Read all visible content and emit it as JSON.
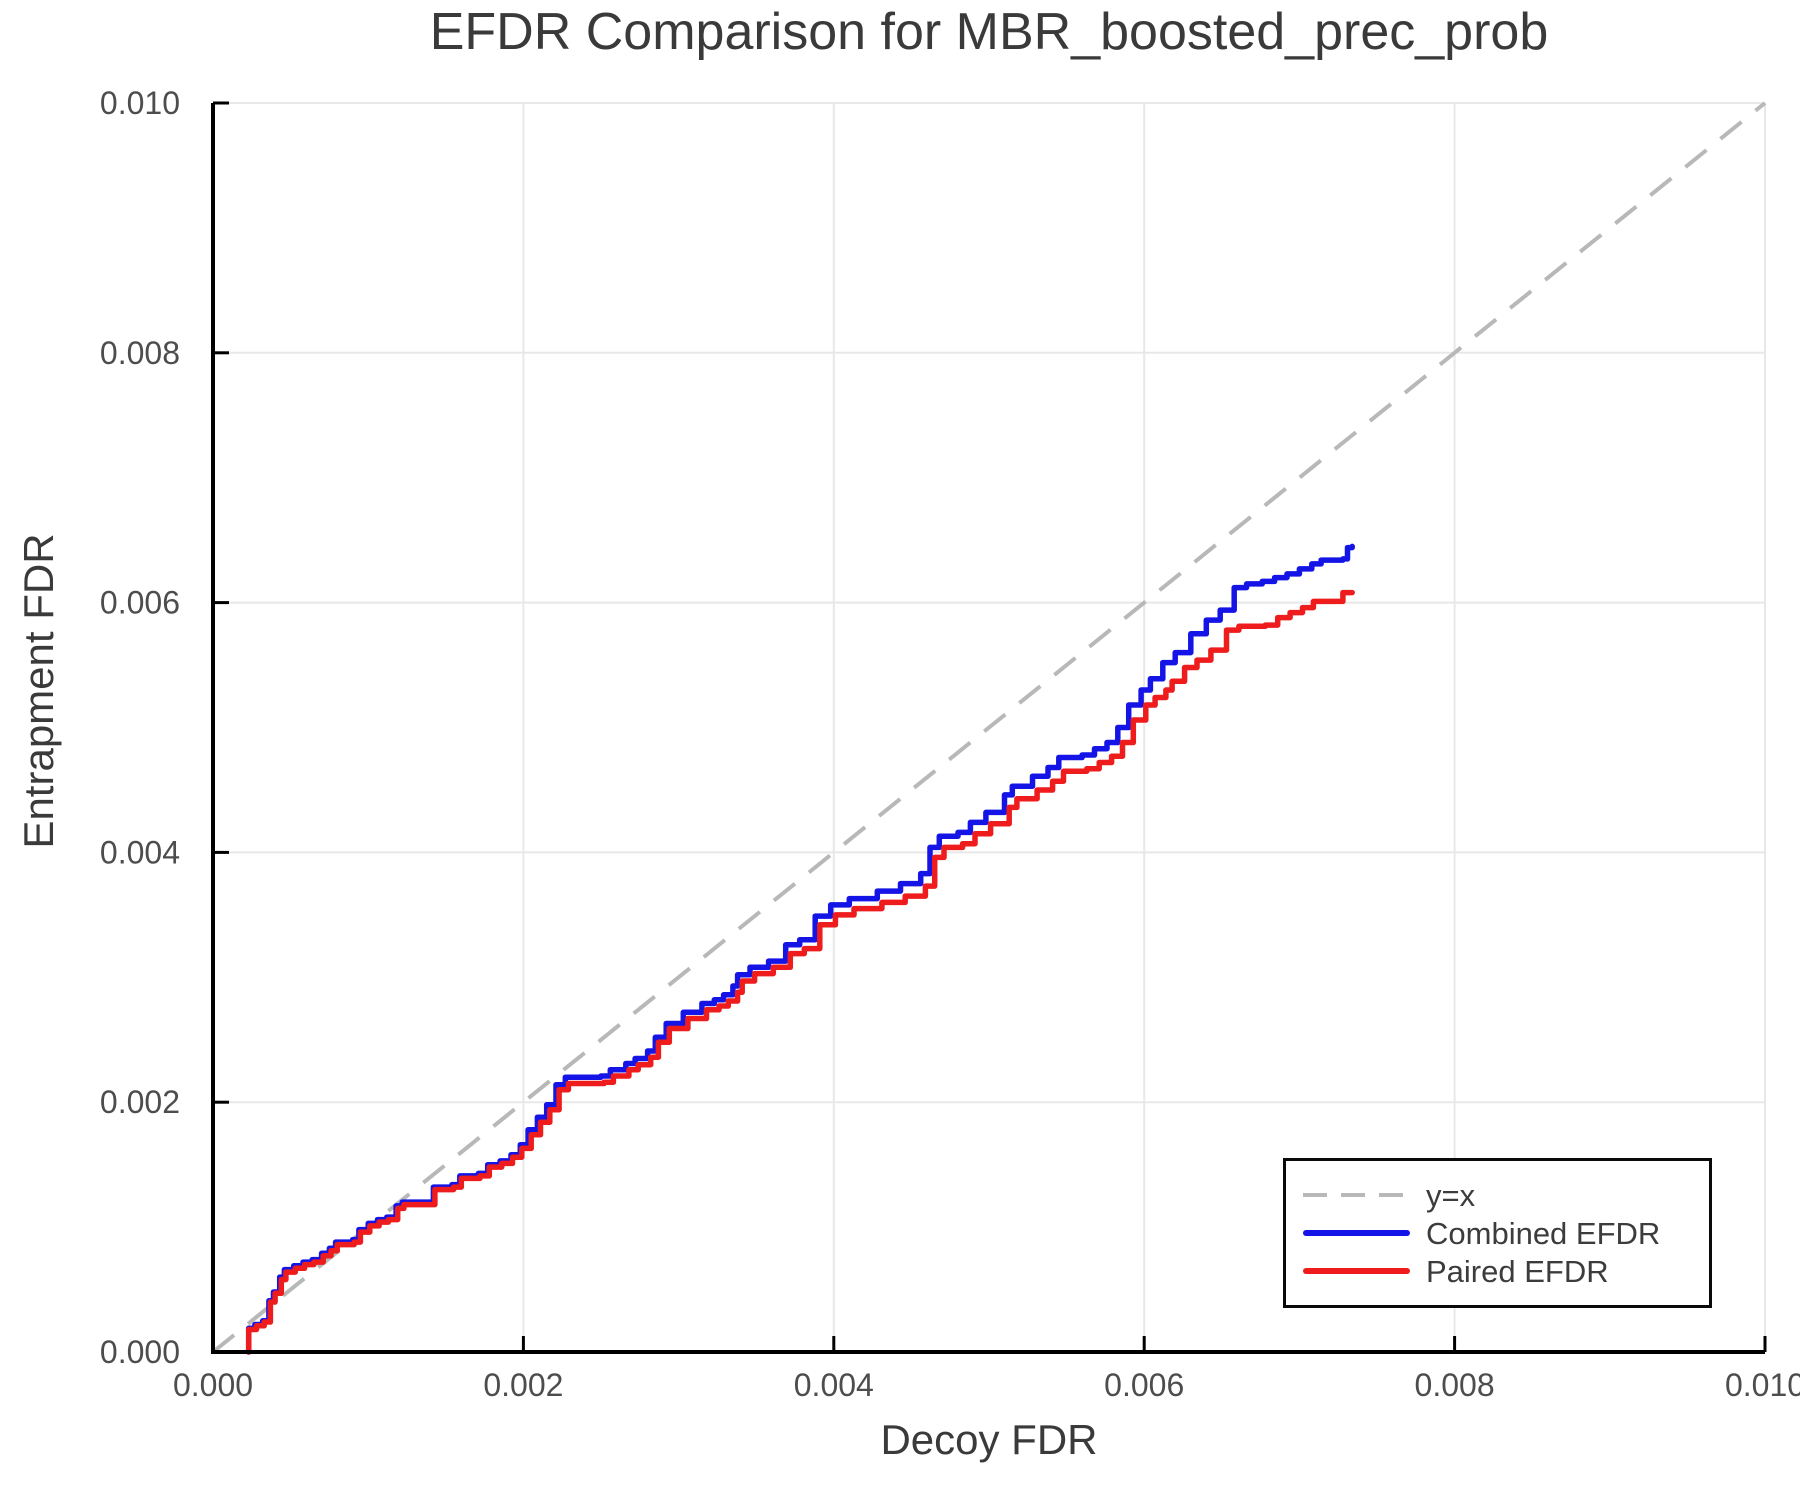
{
  "title": "EFDR Comparison for MBR_boosted_prec_prob",
  "axes": {
    "x": {
      "label": "Decoy FDR",
      "tick_values": [
        0,
        0.002,
        0.004,
        0.006,
        0.008,
        0.01
      ],
      "tick_labels": [
        "0.000",
        "0.002",
        "0.004",
        "0.006",
        "0.008",
        "0.010"
      ]
    },
    "y": {
      "label": "Entrapment FDR",
      "tick_values": [
        0,
        0.002,
        0.004,
        0.006,
        0.008,
        0.01
      ],
      "tick_labels": [
        "0.000",
        "0.002",
        "0.004",
        "0.006",
        "0.008",
        "0.010"
      ]
    }
  },
  "legend": {
    "items": [
      {
        "label": "y=x",
        "style": "dashed",
        "color": "#b8b8b8"
      },
      {
        "label": "Combined EFDR",
        "style": "solid",
        "color": "#1414e6"
      },
      {
        "label": "Paired EFDR",
        "style": "solid",
        "color": "#ee1c1c"
      }
    ]
  },
  "colors": {
    "grid": "#e8e8e8",
    "spine": "#000000",
    "title_text": "#3a3a3a",
    "tick_text": "#4d4d4d",
    "legend_text": "#3c3c3c",
    "reference": "#b8b8b8",
    "combined": "#1414e6",
    "paired": "#ee1c1c"
  },
  "chart_data": {
    "type": "line",
    "title": "EFDR Comparison for MBR_boosted_prec_prob",
    "xlabel": "Decoy FDR",
    "ylabel": "Entrapment FDR",
    "xlim": [
      0,
      0.01
    ],
    "ylim": [
      0,
      0.01
    ],
    "grid": true,
    "legend_position": "lower right",
    "reference_line": {
      "label": "y=x",
      "from": [
        0,
        0
      ],
      "to": [
        0.01,
        0.01
      ],
      "style": "dashed",
      "color": "#b8b8b8"
    },
    "series": [
      {
        "name": "Combined EFDR",
        "color": "#1414e6",
        "step": true,
        "points": [
          [
            0.00023,
            0
          ],
          [
            0.00023,
            0.00019
          ],
          [
            0.00027,
            0.00022
          ],
          [
            0.00032,
            0.00025
          ],
          [
            0.00036,
            0.00041
          ],
          [
            0.00039,
            0.00048
          ],
          [
            0.00043,
            0.0006
          ],
          [
            0.00046,
            0.00066
          ],
          [
            0.00052,
            0.00069
          ],
          [
            0.00058,
            0.00072
          ],
          [
            0.00064,
            0.00074
          ],
          [
            0.0007,
            0.00079
          ],
          [
            0.00075,
            0.00083
          ],
          [
            0.00079,
            0.00088
          ],
          [
            0.0009,
            0.0009
          ],
          [
            0.00094,
            0.00098
          ],
          [
            0.001,
            0.00103
          ],
          [
            0.00106,
            0.00106
          ],
          [
            0.00112,
            0.00108
          ],
          [
            0.00118,
            0.00117
          ],
          [
            0.00122,
            0.0012
          ],
          [
            0.00136,
            0.0012
          ],
          [
            0.00142,
            0.00132
          ],
          [
            0.00154,
            0.00134
          ],
          [
            0.00159,
            0.00141
          ],
          [
            0.00171,
            0.00143
          ],
          [
            0.00177,
            0.0015
          ],
          [
            0.00185,
            0.00153
          ],
          [
            0.00192,
            0.00158
          ],
          [
            0.00198,
            0.00166
          ],
          [
            0.00203,
            0.00178
          ],
          [
            0.00209,
            0.00188
          ],
          [
            0.00215,
            0.00198
          ],
          [
            0.00221,
            0.00214
          ],
          [
            0.00227,
            0.0022
          ],
          [
            0.0025,
            0.00221
          ],
          [
            0.00256,
            0.00226
          ],
          [
            0.00266,
            0.00231
          ],
          [
            0.00272,
            0.00235
          ],
          [
            0.0028,
            0.00241
          ],
          [
            0.00285,
            0.00252
          ],
          [
            0.00292,
            0.00263
          ],
          [
            0.00303,
            0.00272
          ],
          [
            0.00315,
            0.00279
          ],
          [
            0.00323,
            0.00282
          ],
          [
            0.00329,
            0.00286
          ],
          [
            0.00335,
            0.00293
          ],
          [
            0.00338,
            0.00302
          ],
          [
            0.00346,
            0.00308
          ],
          [
            0.00358,
            0.00313
          ],
          [
            0.00369,
            0.00326
          ],
          [
            0.00378,
            0.0033
          ],
          [
            0.00388,
            0.00349
          ],
          [
            0.00398,
            0.00358
          ],
          [
            0.0041,
            0.00363
          ],
          [
            0.00428,
            0.00369
          ],
          [
            0.00443,
            0.00375
          ],
          [
            0.00456,
            0.00383
          ],
          [
            0.00462,
            0.00404
          ],
          [
            0.00468,
            0.00413
          ],
          [
            0.0048,
            0.00416
          ],
          [
            0.00488,
            0.00424
          ],
          [
            0.00498,
            0.00432
          ],
          [
            0.0051,
            0.00446
          ],
          [
            0.00515,
            0.00453
          ],
          [
            0.00528,
            0.00461
          ],
          [
            0.00538,
            0.00468
          ],
          [
            0.00545,
            0.00476
          ],
          [
            0.0056,
            0.00478
          ],
          [
            0.00568,
            0.00483
          ],
          [
            0.00576,
            0.00488
          ],
          [
            0.00583,
            0.005
          ],
          [
            0.0059,
            0.00518
          ],
          [
            0.00598,
            0.0053
          ],
          [
            0.00604,
            0.00539
          ],
          [
            0.00612,
            0.00552
          ],
          [
            0.0062,
            0.0056
          ],
          [
            0.0063,
            0.00575
          ],
          [
            0.0064,
            0.00586
          ],
          [
            0.00649,
            0.00594
          ],
          [
            0.00658,
            0.00612
          ],
          [
            0.00666,
            0.00615
          ],
          [
            0.00676,
            0.00617
          ],
          [
            0.00684,
            0.0062
          ],
          [
            0.00692,
            0.00623
          ],
          [
            0.007,
            0.00627
          ],
          [
            0.00708,
            0.00631
          ],
          [
            0.00714,
            0.00634
          ],
          [
            0.00728,
            0.00635
          ],
          [
            0.00731,
            0.00644
          ],
          [
            0.00734,
            0.00645
          ]
        ]
      },
      {
        "name": "Paired EFDR",
        "color": "#ee1c1c",
        "step": true,
        "points": [
          [
            0.00023,
            0
          ],
          [
            0.00023,
            0.00018
          ],
          [
            0.00028,
            0.00021
          ],
          [
            0.00033,
            0.00024
          ],
          [
            0.00037,
            0.0004
          ],
          [
            0.0004,
            0.00047
          ],
          [
            0.00044,
            0.00058
          ],
          [
            0.00047,
            0.00064
          ],
          [
            0.00053,
            0.00067
          ],
          [
            0.00059,
            0.0007
          ],
          [
            0.00065,
            0.00072
          ],
          [
            0.00071,
            0.00077
          ],
          [
            0.00076,
            0.00081
          ],
          [
            0.0008,
            0.00086
          ],
          [
            0.00091,
            0.00088
          ],
          [
            0.00095,
            0.00096
          ],
          [
            0.00101,
            0.00101
          ],
          [
            0.00107,
            0.00104
          ],
          [
            0.00113,
            0.00106
          ],
          [
            0.00119,
            0.00115
          ],
          [
            0.00123,
            0.00118
          ],
          [
            0.00137,
            0.00118
          ],
          [
            0.00143,
            0.0013
          ],
          [
            0.00155,
            0.00132
          ],
          [
            0.0016,
            0.00139
          ],
          [
            0.00172,
            0.00141
          ],
          [
            0.00178,
            0.00148
          ],
          [
            0.00186,
            0.00151
          ],
          [
            0.00193,
            0.00156
          ],
          [
            0.00199,
            0.00163
          ],
          [
            0.00205,
            0.00174
          ],
          [
            0.00211,
            0.00184
          ],
          [
            0.00217,
            0.00194
          ],
          [
            0.00223,
            0.0021
          ],
          [
            0.00229,
            0.00215
          ],
          [
            0.00252,
            0.00216
          ],
          [
            0.00258,
            0.00221
          ],
          [
            0.00268,
            0.00226
          ],
          [
            0.00274,
            0.0023
          ],
          [
            0.00282,
            0.00236
          ],
          [
            0.00287,
            0.00248
          ],
          [
            0.00294,
            0.00259
          ],
          [
            0.00306,
            0.00267
          ],
          [
            0.00318,
            0.00274
          ],
          [
            0.00326,
            0.00277
          ],
          [
            0.00332,
            0.00281
          ],
          [
            0.00338,
            0.00288
          ],
          [
            0.00341,
            0.00297
          ],
          [
            0.00349,
            0.00303
          ],
          [
            0.00361,
            0.00308
          ],
          [
            0.00372,
            0.00319
          ],
          [
            0.00381,
            0.00323
          ],
          [
            0.00391,
            0.00342
          ],
          [
            0.00401,
            0.0035
          ],
          [
            0.00413,
            0.00355
          ],
          [
            0.00431,
            0.0036
          ],
          [
            0.00446,
            0.00365
          ],
          [
            0.00459,
            0.00373
          ],
          [
            0.00465,
            0.00396
          ],
          [
            0.00471,
            0.00404
          ],
          [
            0.00483,
            0.00407
          ],
          [
            0.00491,
            0.00415
          ],
          [
            0.00501,
            0.00423
          ],
          [
            0.00513,
            0.00436
          ],
          [
            0.00518,
            0.00443
          ],
          [
            0.00531,
            0.0045
          ],
          [
            0.00541,
            0.00457
          ],
          [
            0.00548,
            0.00465
          ],
          [
            0.00563,
            0.00467
          ],
          [
            0.00571,
            0.00472
          ],
          [
            0.00579,
            0.00477
          ],
          [
            0.00586,
            0.00488
          ],
          [
            0.00593,
            0.00506
          ],
          [
            0.00601,
            0.00518
          ],
          [
            0.00607,
            0.00524
          ],
          [
            0.00614,
            0.0053
          ],
          [
            0.00618,
            0.00537
          ],
          [
            0.00626,
            0.00548
          ],
          [
            0.00634,
            0.00554
          ],
          [
            0.00643,
            0.00562
          ],
          [
            0.00653,
            0.00578
          ],
          [
            0.00661,
            0.00581
          ],
          [
            0.00678,
            0.00582
          ],
          [
            0.00686,
            0.00588
          ],
          [
            0.00694,
            0.00592
          ],
          [
            0.00702,
            0.00596
          ],
          [
            0.00709,
            0.00601
          ],
          [
            0.00724,
            0.00601
          ],
          [
            0.00728,
            0.00608
          ],
          [
            0.00734,
            0.00608
          ]
        ]
      }
    ]
  }
}
